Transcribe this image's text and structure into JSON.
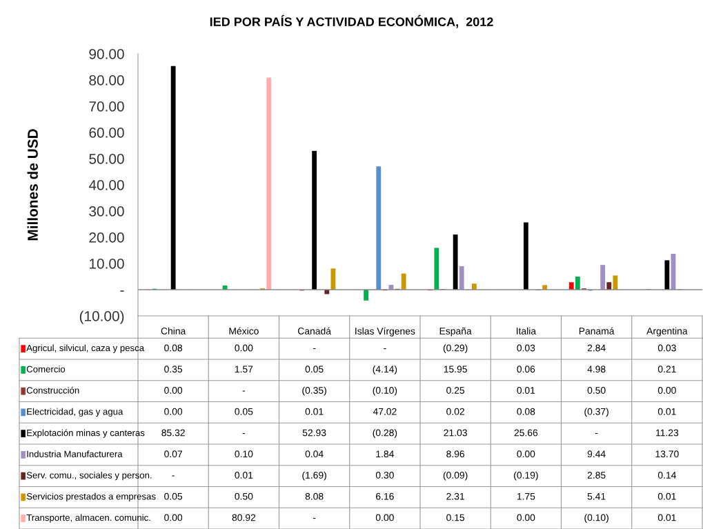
{
  "chart_data": {
    "type": "bar",
    "title": "IED POR PAÍS Y ACTIVIDAD ECONÓMICA,  2012",
    "ylabel": "Millones de USD",
    "categories": [
      "China",
      "México",
      "Canadá",
      "Islas Vírgenes",
      "España",
      "Italia",
      "Panamá",
      "Argentina"
    ],
    "ylim": [
      -10,
      90
    ],
    "yticks": [
      {
        "value": -10,
        "label": "(10.00)"
      },
      {
        "value": 0,
        "label": "-"
      },
      {
        "value": 10,
        "label": "10.00"
      },
      {
        "value": 20,
        "label": "20.00"
      },
      {
        "value": 30,
        "label": "30.00"
      },
      {
        "value": 40,
        "label": "40.00"
      },
      {
        "value": 50,
        "label": "50.00"
      },
      {
        "value": 60,
        "label": "60.00"
      },
      {
        "value": 70,
        "label": "70.00"
      },
      {
        "value": 80,
        "label": "80.00"
      },
      {
        "value": 90,
        "label": "90.00"
      }
    ],
    "grid": false,
    "legend": "left",
    "ref_lines": [
      {
        "axis": "y",
        "value": 0,
        "color": "#888888"
      }
    ],
    "series": [
      {
        "name": "Agricul, silvicul, caza y pesca",
        "color": "#ff0000",
        "values": [
          0.08,
          0.0,
          null,
          null,
          -0.29,
          0.03,
          2.84,
          0.03
        ],
        "value_labels": [
          "0.08",
          "0.00",
          "-",
          "-",
          "(0.29)",
          "0.03",
          "2.84",
          "0.03"
        ]
      },
      {
        "name": "Comercio",
        "color": "#00b050",
        "values": [
          0.35,
          1.57,
          0.05,
          -4.14,
          15.95,
          0.06,
          4.98,
          0.21
        ],
        "value_labels": [
          "0.35",
          "1.57",
          "0.05",
          "(4.14)",
          "15.95",
          "0.06",
          "4.98",
          "0.21"
        ]
      },
      {
        "name": "Construcción",
        "color": "#953735",
        "values": [
          0.0,
          null,
          -0.35,
          -0.1,
          0.25,
          0.01,
          0.5,
          0.0
        ],
        "value_labels": [
          "0.00",
          "-",
          "(0.35)",
          "(0.10)",
          "0.25",
          "0.01",
          "0.50",
          "0.00"
        ]
      },
      {
        "name": "Electricidad, gas y agua",
        "color": "#558ed5",
        "values": [
          0.0,
          0.05,
          0.01,
          47.02,
          0.02,
          0.08,
          -0.37,
          0.01
        ],
        "value_labels": [
          "0.00",
          "0.05",
          "0.01",
          "47.02",
          "0.02",
          "0.08",
          "(0.37)",
          "0.01"
        ]
      },
      {
        "name": "Explotación minas y canteras",
        "color": "#000000",
        "values": [
          85.32,
          null,
          52.93,
          -0.28,
          21.03,
          25.66,
          null,
          11.23
        ],
        "value_labels": [
          "85.32",
          "-",
          "52.93",
          "(0.28)",
          "21.03",
          "25.66",
          "-",
          "11.23"
        ]
      },
      {
        "name": "Industria Manufacturera",
        "color": "#9f8fc2",
        "values": [
          0.07,
          0.1,
          0.04,
          1.84,
          8.96,
          0.0,
          9.44,
          13.7
        ],
        "value_labels": [
          "0.07",
          "0.10",
          "0.04",
          "1.84",
          "8.96",
          "0.00",
          "9.44",
          "13.70"
        ]
      },
      {
        "name": "Serv. comu., sociales y person.",
        "color": "#632523",
        "values": [
          null,
          0.01,
          -1.69,
          0.3,
          -0.09,
          -0.19,
          2.85,
          0.14
        ],
        "value_labels": [
          "-",
          "0.01",
          "(1.69)",
          "0.30",
          "(0.09)",
          "(0.19)",
          "2.85",
          "0.14"
        ]
      },
      {
        "name": "Servicios prestados a empresas",
        "color": "#c89a00",
        "values": [
          0.05,
          0.5,
          8.08,
          6.16,
          2.31,
          1.75,
          5.41,
          0.01
        ],
        "value_labels": [
          "0.05",
          "0.50",
          "8.08",
          "6.16",
          "2.31",
          "1.75",
          "5.41",
          "0.01"
        ]
      },
      {
        "name": "Transporte, almacen. comunic.",
        "color": "#ffaeae",
        "values": [
          0.0,
          80.92,
          null,
          0.0,
          0.15,
          0.0,
          -0.1,
          0.01
        ],
        "value_labels": [
          "0.00",
          "80.92",
          "-",
          "0.00",
          "0.15",
          "0.00",
          "(0.10)",
          "0.01"
        ]
      }
    ]
  }
}
